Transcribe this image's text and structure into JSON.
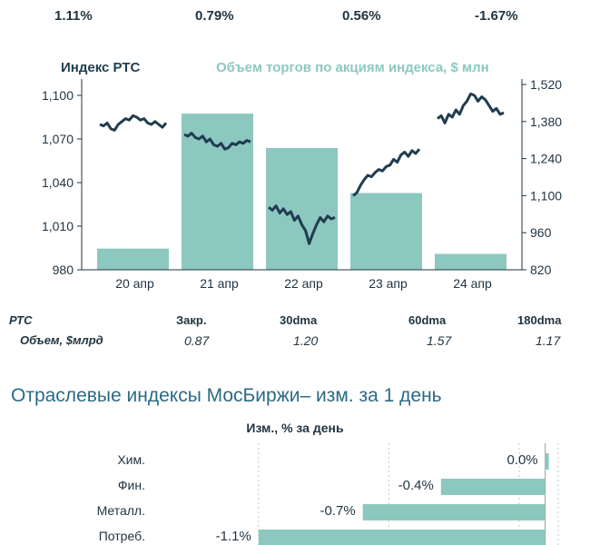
{
  "top_changes": [
    "1.11%",
    "0.79%",
    "0.56%",
    "-1.67%"
  ],
  "chart_data": [
    {
      "type": "bar+line",
      "legend_left": "Индекс РТС",
      "legend_right": "Объем торгов по акциям индекса, $ млн",
      "categories": [
        "20 апр",
        "21 апр",
        "22 апр",
        "23 апр",
        "24 апр"
      ],
      "left_axis": {
        "ticks": [
          "1,100",
          "1,070",
          "1,040",
          "1,010",
          "980"
        ],
        "range": [
          980,
          1100
        ]
      },
      "right_axis": {
        "ticks": [
          "1,520",
          "1,380",
          "1,240",
          "1,100",
          "960",
          "820"
        ],
        "range": [
          820,
          1520
        ]
      },
      "volume_bars": [
        900,
        1410,
        1280,
        1110,
        880
      ],
      "rts_line": [
        [
          1080,
          1079,
          1081,
          1077,
          1076,
          1080,
          1082,
          1084,
          1083,
          1086,
          1085,
          1083,
          1084,
          1081,
          1080,
          1082,
          1080,
          1078,
          1081
        ],
        [
          1073,
          1072,
          1074,
          1071,
          1070,
          1072,
          1068,
          1070,
          1066,
          1065,
          1067,
          1063,
          1064,
          1067,
          1066,
          1068,
          1067,
          1069,
          1068
        ],
        [
          1023,
          1021,
          1024,
          1019,
          1022,
          1018,
          1020,
          1014,
          1017,
          1011,
          1007,
          998,
          1005,
          1011,
          1016,
          1013,
          1017,
          1015,
          1016
        ],
        [
          1031,
          1033,
          1038,
          1042,
          1045,
          1044,
          1047,
          1049,
          1048,
          1051,
          1052,
          1056,
          1054,
          1059,
          1061,
          1058,
          1062,
          1060,
          1063
        ],
        [
          1084,
          1086,
          1081,
          1087,
          1085,
          1090,
          1087,
          1093,
          1096,
          1101,
          1100,
          1096,
          1099,
          1097,
          1093,
          1089,
          1091,
          1087,
          1088
        ]
      ]
    },
    {
      "type": "bar",
      "title": "Изм., % за день",
      "categories": [
        "Хим.",
        "Фин.",
        "Металл.",
        "Потреб."
      ],
      "values": [
        0.0,
        -0.4,
        -0.7,
        -1.1
      ],
      "labels": [
        "0.0%",
        "-0.4%",
        "-0.7%",
        "-1.1%"
      ],
      "xlim": [
        -1.5,
        0.05
      ]
    }
  ],
  "summary_table": {
    "rows": [
      {
        "label": "РТС",
        "cells": [
          "Закр.",
          "30dma",
          "60dma",
          "180dma"
        ]
      },
      {
        "label": "Объем, $млрд",
        "cells": [
          "0.87",
          "1.20",
          "1.57",
          "1.17"
        ]
      }
    ]
  },
  "section_title": "Отраслевые индексы МосБиржи– изм. за 1 день",
  "colors": {
    "bar": "#8cc8c0",
    "line": "#1f3d4f",
    "text": "#1f3340",
    "title": "#2b6a85",
    "grid": "#c8c8c8"
  }
}
